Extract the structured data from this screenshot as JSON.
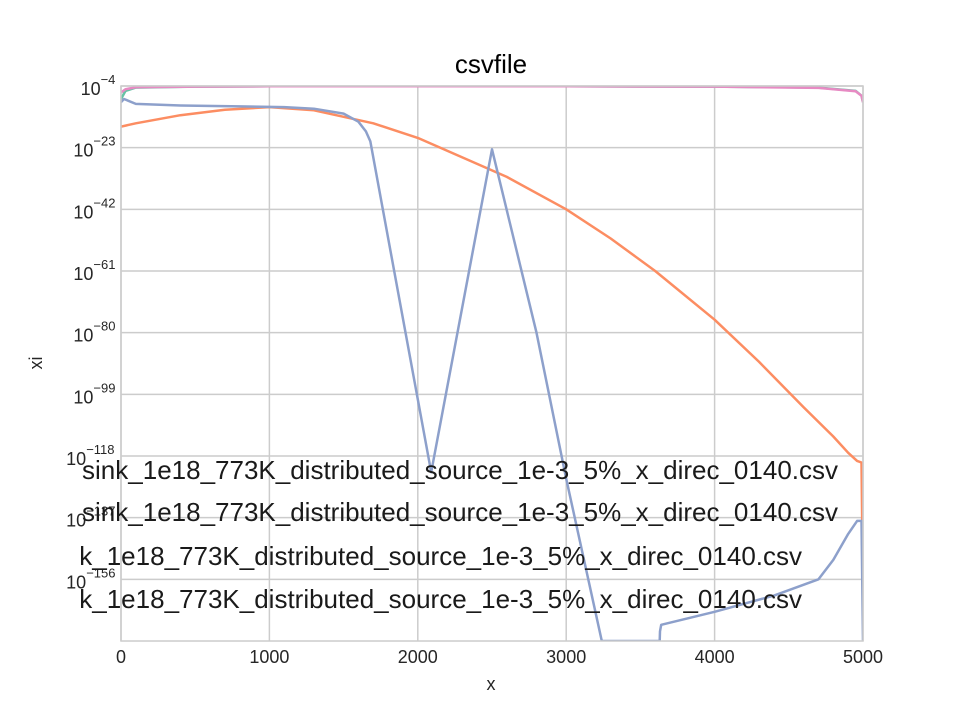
{
  "chart_data": {
    "type": "line",
    "title": "csvfile",
    "xlabel": "x",
    "ylabel": "xi",
    "xlim": [
      0,
      5000
    ],
    "ylim_log10": [
      -175,
      -4
    ],
    "yscale": "log",
    "grid": true,
    "x_ticks": [
      "0",
      "1000",
      "2000",
      "3000",
      "4000",
      "5000"
    ],
    "x_tick_values": [
      0,
      1000,
      2000,
      3000,
      4000,
      5000
    ],
    "y_ticks_exp": [
      -4,
      -23,
      -42,
      -61,
      -80,
      -99,
      -118,
      -137,
      -156
    ],
    "y_tick_base": "10",
    "y_tick_labels": [
      "−4",
      "−23",
      "−42",
      "−61",
      "−80",
      "−99",
      "−118",
      "−137",
      "−156"
    ],
    "legend_placement": "lower-left",
    "legend_entries": [
      "sink_1e18_773K_distributed_source_1e-3_5%_x_direc_0140.csv",
      "sink_1e18_773K_distributed_source_1e-3_5%_x_direc_0140.csv",
      "k_1e18_773K_distributed_source_1e-3_5%_x_direc_0140.csv",
      "k_1e18_773K_distributed_source_1e-3_5%_x_direc_0140.csv"
    ],
    "series": [
      {
        "color": "#66c2a5",
        "x": [
          0,
          30,
          100,
          500,
          1000,
          2000,
          3000,
          4000,
          4700,
          4950,
          4990,
          5000
        ],
        "log10_y": [
          -8,
          -5.5,
          -4.5,
          -4.2,
          -4.1,
          -4.1,
          -4.1,
          -4.2,
          -4.5,
          -5.5,
          -7,
          -9
        ]
      },
      {
        "color": "#fc8d62",
        "x": [
          0,
          100,
          400,
          700,
          1000,
          1300,
          1700,
          2000,
          2300,
          2600,
          3000,
          3300,
          3600,
          4000,
          4300,
          4600,
          4800,
          4900,
          4960,
          4990,
          5000
        ],
        "log10_y": [
          -16.5,
          -15.5,
          -13,
          -11.3,
          -10.5,
          -11.5,
          -15.5,
          -20,
          -26,
          -32,
          -42,
          -51,
          -61,
          -76,
          -89,
          -103,
          -112,
          -117,
          -119.5,
          -120,
          -160
        ]
      },
      {
        "color": "#8da0cb",
        "x": [
          0,
          20,
          100,
          400,
          800,
          1100,
          1300,
          1500,
          1600,
          1650,
          1680,
          2090,
          2500,
          2800,
          3000,
          3240,
          3630,
          3632,
          3640,
          4000,
          4400,
          4700,
          4800,
          4900,
          4960,
          4990,
          5000
        ],
        "log10_y": [
          -9,
          -8,
          -9.5,
          -10,
          -10.3,
          -10.5,
          -11,
          -12.5,
          -15,
          -18,
          -21,
          -123,
          -23.5,
          -80,
          -125,
          -175,
          -175,
          -172,
          -170,
          -166,
          -161,
          -156,
          -150,
          -142,
          -138,
          -138,
          -175
        ]
      },
      {
        "color": "#e78ac3",
        "x": [
          0,
          30,
          100,
          500,
          1000,
          2000,
          3000,
          4000,
          4700,
          4950,
          4990,
          5000
        ],
        "log10_y": [
          -6,
          -5,
          -4.4,
          -4.2,
          -4.1,
          -4.1,
          -4.1,
          -4.2,
          -4.6,
          -5.6,
          -7,
          -9
        ]
      }
    ]
  }
}
